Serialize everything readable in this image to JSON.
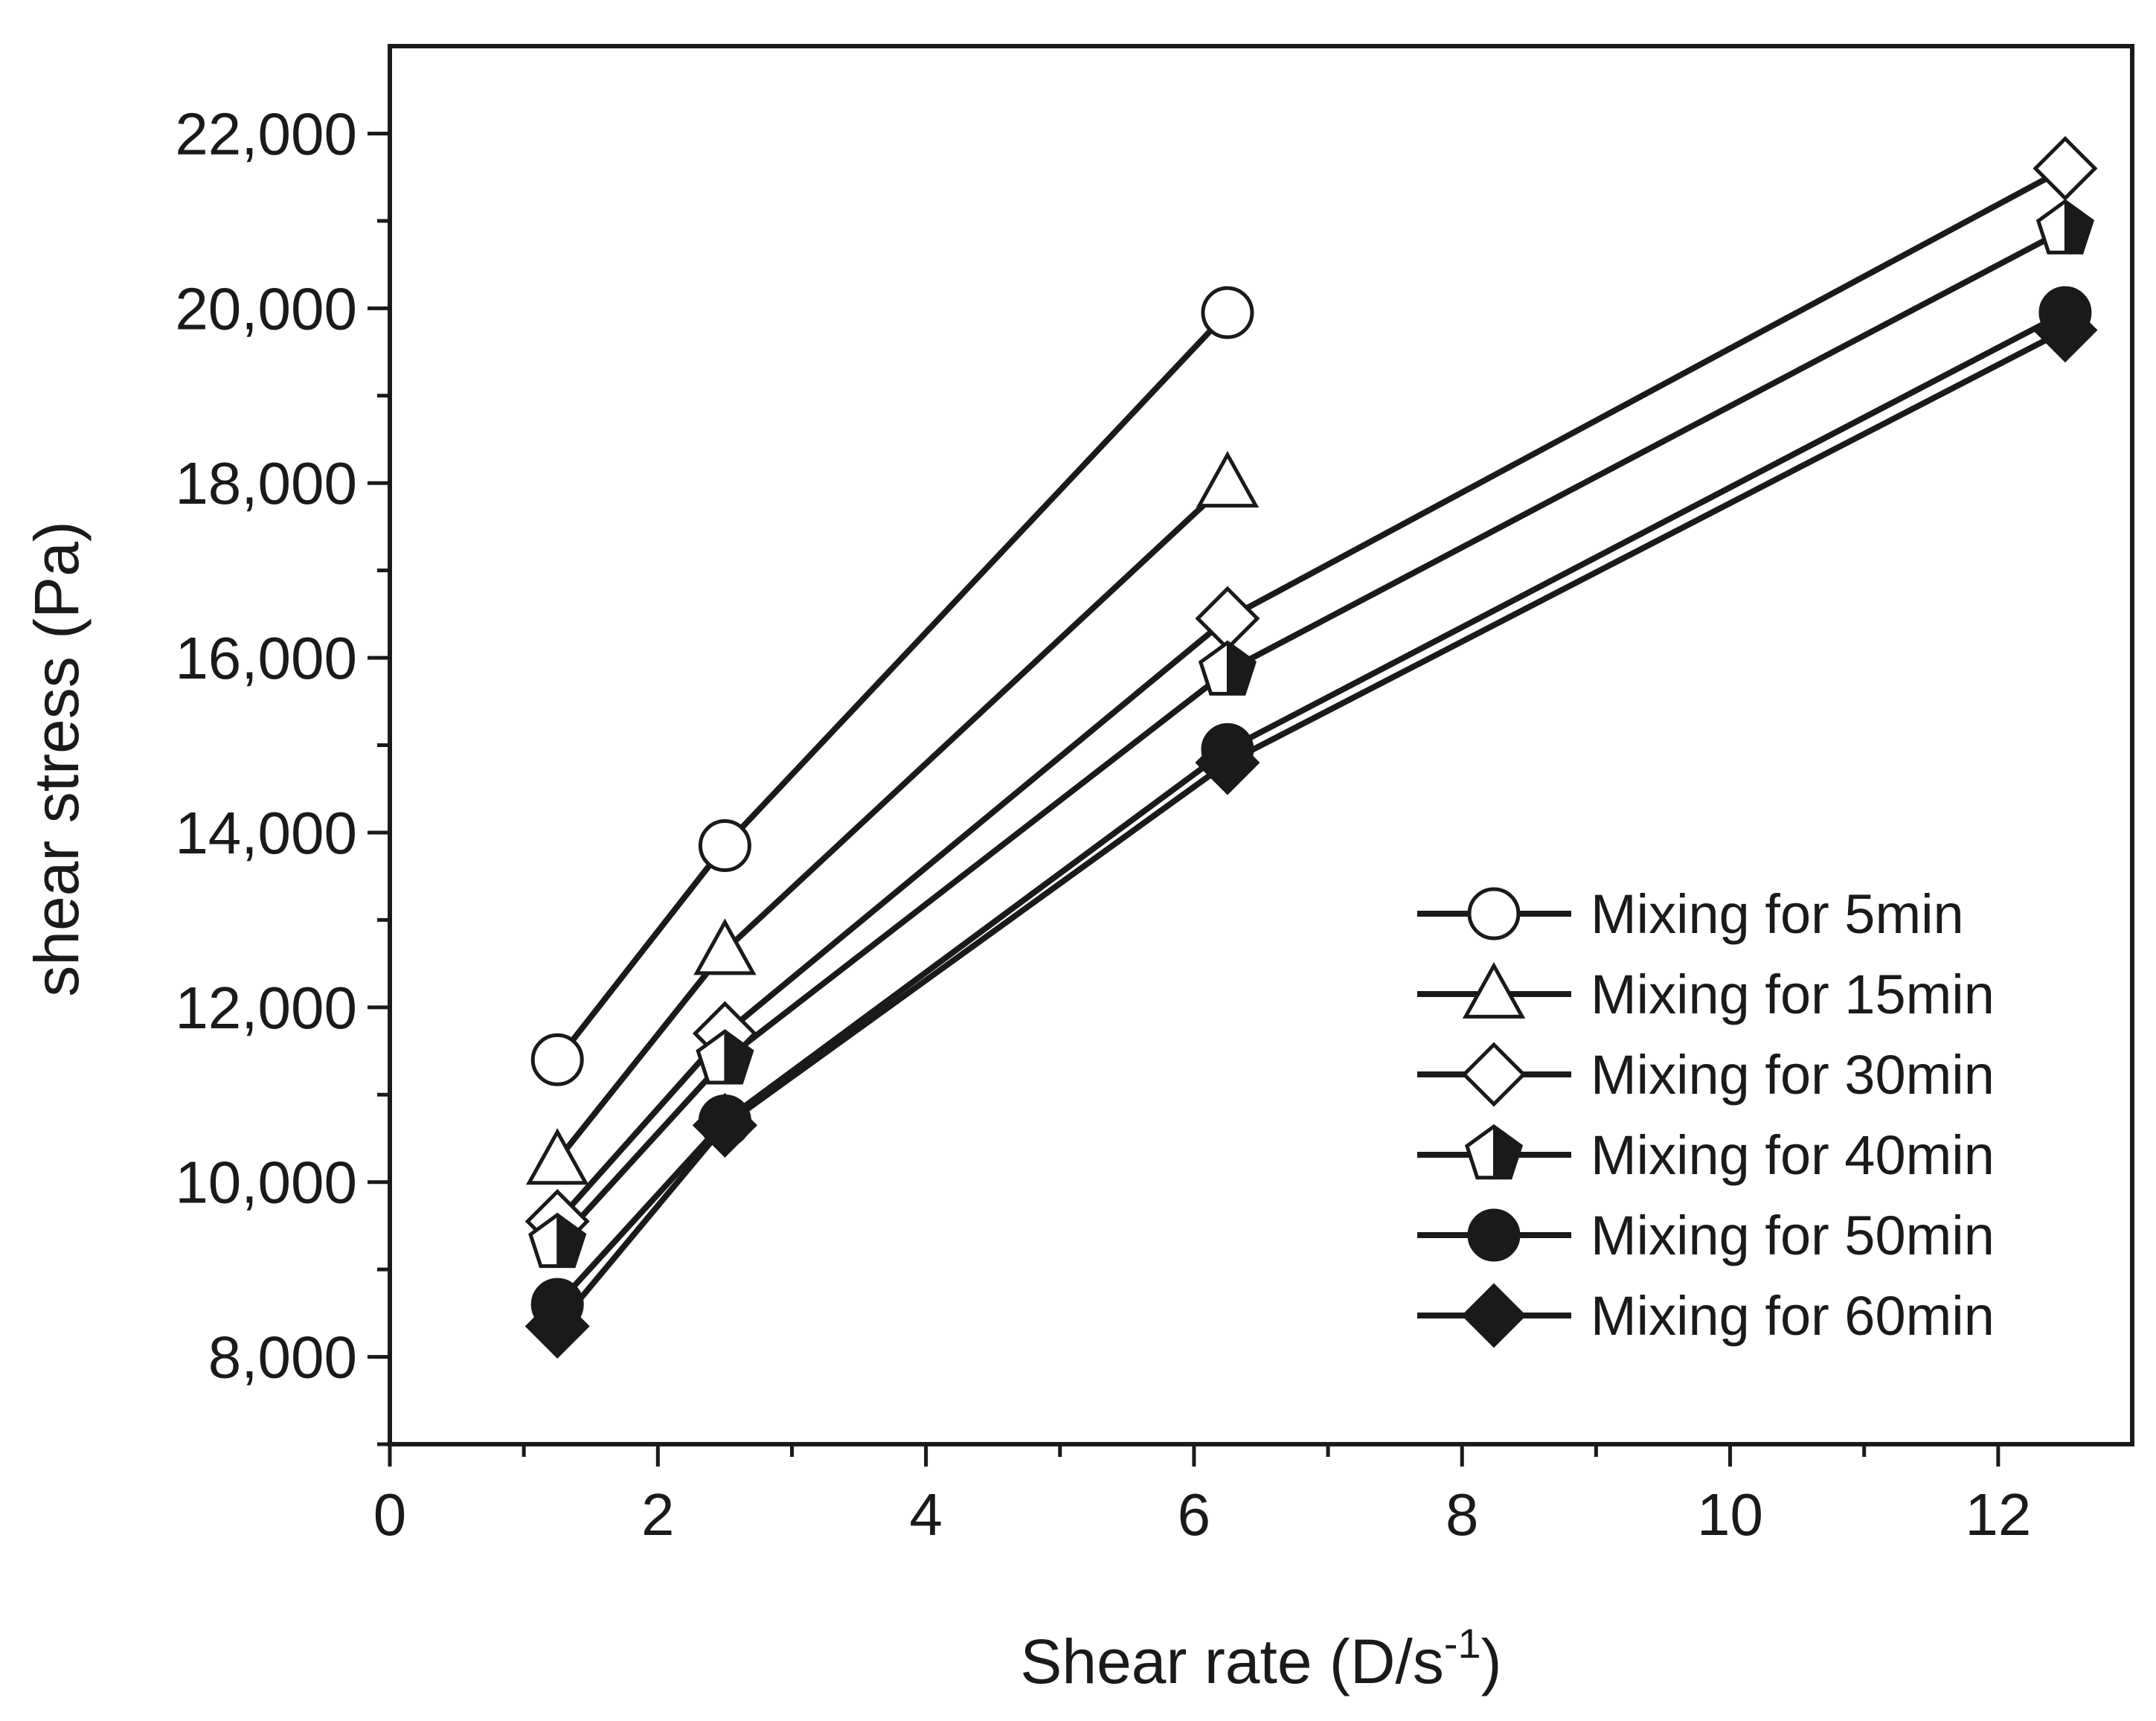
{
  "chart_data": {
    "type": "line",
    "xlabel": "Shear rate (D/s",
    "xlabel_sup": "-1",
    "xlabel_close": ")",
    "ylabel": "shear stress (Pa)",
    "xlim": [
      0,
      13
    ],
    "ylim": [
      7000,
      23000
    ],
    "x": [
      1.25,
      2.5,
      6.25,
      12.5
    ],
    "xticks": [
      0,
      2,
      4,
      6,
      8,
      10,
      12
    ],
    "xtick_labels": [
      "0",
      "2",
      "4",
      "6",
      "8",
      "10",
      "12"
    ],
    "yticks": [
      8000,
      10000,
      12000,
      14000,
      16000,
      18000,
      20000,
      22000
    ],
    "ytick_labels": [
      "8,000",
      "10,000",
      "12,000",
      "14,000",
      "16,000",
      "18,000",
      "20,000",
      "22,000"
    ],
    "legend_position": "bottom-right",
    "series": [
      {
        "name": "Mixing for 5min",
        "marker": "circle-open",
        "values": [
          11400,
          13850,
          19950,
          null
        ]
      },
      {
        "name": "Mixing for 15min",
        "marker": "triangle-open",
        "values": [
          10250,
          12650,
          18000,
          null
        ]
      },
      {
        "name": "Mixing for 30min",
        "marker": "diamond-open",
        "values": [
          9550,
          11700,
          16450,
          21600
        ]
      },
      {
        "name": "Mixing for 40min",
        "marker": "pentagon-half",
        "values": [
          9300,
          11400,
          15850,
          20900
        ]
      },
      {
        "name": "Mixing for 50min",
        "marker": "circle-filled",
        "values": [
          8600,
          10700,
          14950,
          19950
        ]
      },
      {
        "name": "Mixing for 60min",
        "marker": "diamond-filled",
        "values": [
          8350,
          10650,
          14800,
          19750
        ]
      }
    ]
  }
}
